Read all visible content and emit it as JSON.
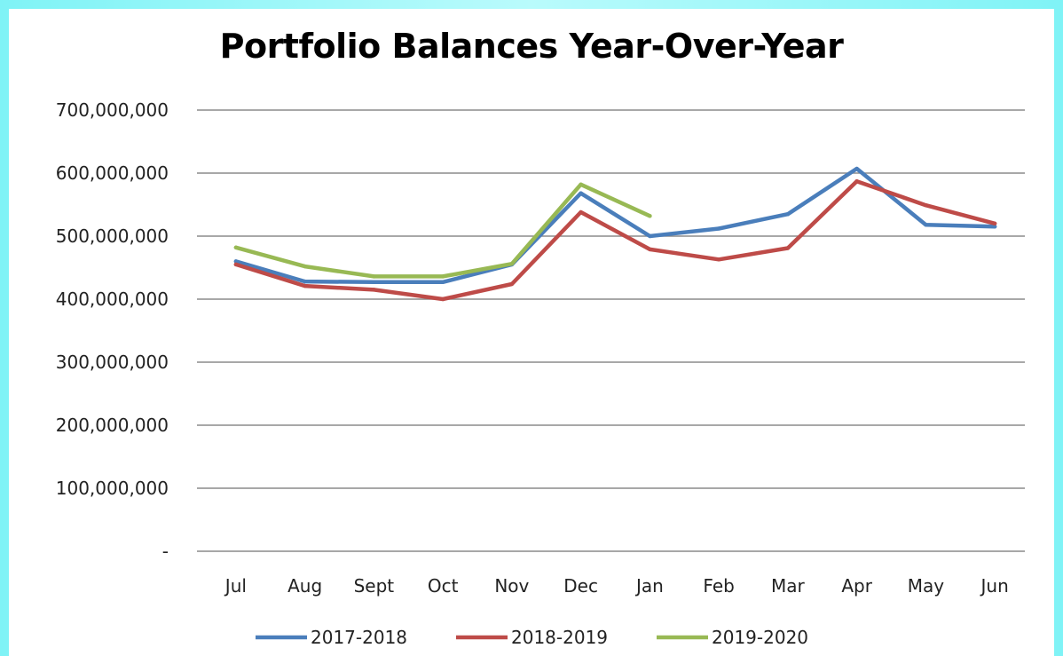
{
  "chart_data": {
    "type": "line",
    "title": "Portfolio Balances Year-Over-Year",
    "xlabel": "",
    "ylabel": "",
    "categories": [
      "Jul",
      "Aug",
      "Sept",
      "Oct",
      "Nov",
      "Dec",
      "Jan",
      "Feb",
      "Mar",
      "Apr",
      "May",
      "Jun"
    ],
    "ylim": [
      0,
      700000000
    ],
    "yticks": [
      0,
      100000000,
      200000000,
      300000000,
      400000000,
      500000000,
      600000000,
      700000000
    ],
    "ytick_labels": [
      "-",
      "100,000,000",
      "200,000,000",
      "300,000,000",
      "400,000,000",
      "500,000,000",
      "600,000,000",
      "700,000,000"
    ],
    "grid": true,
    "legend_position": "bottom",
    "series": [
      {
        "name": "2017-2018",
        "color": "#4a7ebb",
        "values": [
          460000000,
          428000000,
          427000000,
          427000000,
          455000000,
          568000000,
          500000000,
          512000000,
          535000000,
          607000000,
          518000000,
          515000000
        ]
      },
      {
        "name": "2018-2019",
        "color": "#be4b48",
        "values": [
          455000000,
          421000000,
          415000000,
          400000000,
          424000000,
          538000000,
          479000000,
          463000000,
          481000000,
          587000000,
          549000000,
          520000000
        ]
      },
      {
        "name": "2019-2020",
        "color": "#98b954",
        "values": [
          482000000,
          452000000,
          436000000,
          436000000,
          456000000,
          582000000,
          532000000,
          null,
          null,
          null,
          null,
          null
        ]
      }
    ]
  }
}
